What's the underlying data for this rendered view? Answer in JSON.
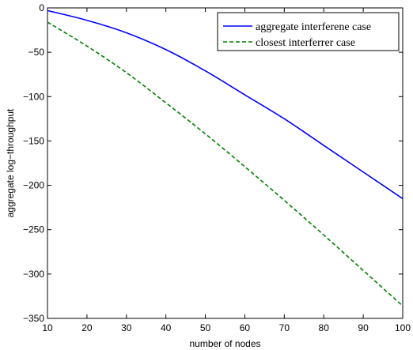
{
  "chart_data": {
    "type": "line",
    "xlabel": "number of nodes",
    "ylabel": "aggregate log−throughput",
    "xlim": [
      10,
      100
    ],
    "ylim": [
      -350,
      0
    ],
    "xticks": [
      10,
      20,
      30,
      40,
      50,
      60,
      70,
      80,
      90,
      100
    ],
    "yticks": [
      0,
      -50,
      -100,
      -150,
      -200,
      -250,
      -300,
      -350
    ],
    "grid": false,
    "legend_position": "top-right",
    "series": [
      {
        "name": "aggregate interferene case",
        "color": "#0000ff",
        "style": "solid",
        "x": [
          10,
          20,
          30,
          40,
          50,
          60,
          70,
          80,
          90,
          100
        ],
        "y": [
          -3,
          -14,
          -28,
          -47,
          -71,
          -98,
          -125,
          -155,
          -185,
          -215
        ]
      },
      {
        "name": "closest interferrer case",
        "color": "#008000",
        "style": "dashed",
        "x": [
          10,
          20,
          30,
          40,
          50,
          60,
          70,
          80,
          90,
          100
        ],
        "y": [
          -16,
          -43,
          -73,
          -107,
          -142,
          -179,
          -217,
          -256,
          -296,
          -336
        ]
      }
    ]
  }
}
